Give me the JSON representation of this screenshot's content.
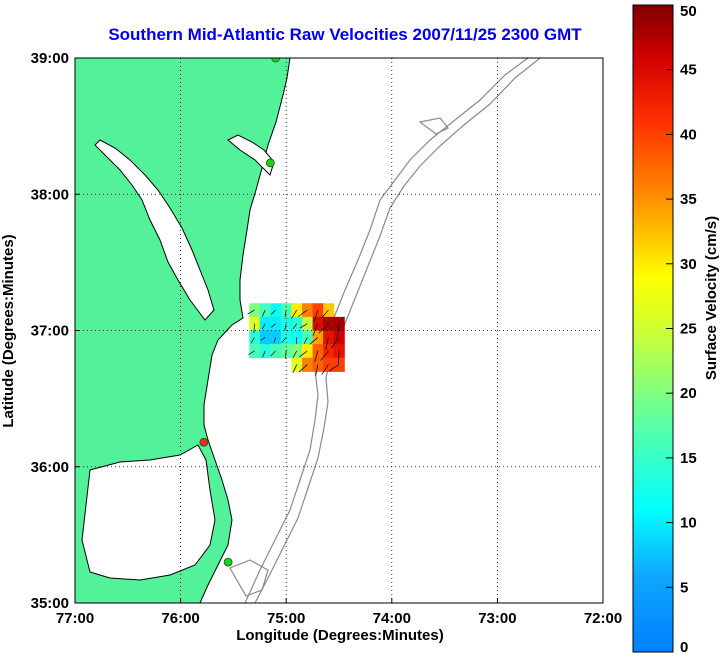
{
  "chart_data": {
    "type": "heatmap",
    "title": "Southern Mid-Atlantic Raw Velocities 2007/11/25 2300 GMT",
    "xlabel": "Longitude (Degrees:Minutes)",
    "ylabel": "Latitude (Degrees:Minutes)",
    "xlim": [
      -77,
      -72
    ],
    "ylim": [
      35,
      39
    ],
    "x_ticks": [
      {
        "value": -77,
        "label": "77:00"
      },
      {
        "value": -76,
        "label": "76:00"
      },
      {
        "value": -75,
        "label": "75:00"
      },
      {
        "value": -74,
        "label": "74:00"
      },
      {
        "value": -73,
        "label": "73:00"
      },
      {
        "value": -72,
        "label": "72:00"
      }
    ],
    "y_ticks": [
      {
        "value": 35,
        "label": "35:00"
      },
      {
        "value": 36,
        "label": "36:00"
      },
      {
        "value": 37,
        "label": "37:00"
      },
      {
        "value": 38,
        "label": "38:00"
      },
      {
        "value": 39,
        "label": "39:00"
      }
    ],
    "grid": "dotted at tick positions",
    "colorbar": {
      "label": "Surface Velocity (cm/s)",
      "range": [
        0,
        50
      ],
      "ticks": [
        0,
        5,
        10,
        15,
        20,
        25,
        30,
        35,
        40,
        45,
        50
      ],
      "colormap": "jet",
      "placement": "right"
    },
    "colors": {
      "land": "#52f19a",
      "water": "#ffffff",
      "coastline": "#000000",
      "bathymetry": "#8a8a8a",
      "title": "#0000ee",
      "station_green": "#22cc22",
      "station_red": "#ff2222"
    },
    "stations": [
      {
        "lon": -75.1,
        "lat": 39.0,
        "status": "green"
      },
      {
        "lon": -75.15,
        "lat": 38.23,
        "status": "green"
      },
      {
        "lon": -75.78,
        "lat": 36.18,
        "status": "red"
      },
      {
        "lon": -75.55,
        "lat": 35.3,
        "status": "green"
      }
    ],
    "velocity_cells": [
      {
        "lon": -75.3,
        "lat": 37.15,
        "speed": 20
      },
      {
        "lon": -75.2,
        "lat": 37.15,
        "speed": 16
      },
      {
        "lon": -75.1,
        "lat": 37.15,
        "speed": 12
      },
      {
        "lon": -75.0,
        "lat": 37.15,
        "speed": 16
      },
      {
        "lon": -74.9,
        "lat": 37.15,
        "speed": 30
      },
      {
        "lon": -74.8,
        "lat": 37.15,
        "speed": 36
      },
      {
        "lon": -74.7,
        "lat": 37.15,
        "speed": 40
      },
      {
        "lon": -74.6,
        "lat": 37.15,
        "speed": 32
      },
      {
        "lon": -75.3,
        "lat": 37.05,
        "speed": 26
      },
      {
        "lon": -75.2,
        "lat": 37.05,
        "speed": 10
      },
      {
        "lon": -75.1,
        "lat": 37.05,
        "speed": 10
      },
      {
        "lon": -75.0,
        "lat": 37.05,
        "speed": 13
      },
      {
        "lon": -74.9,
        "lat": 37.05,
        "speed": 14
      },
      {
        "lon": -74.8,
        "lat": 37.05,
        "speed": 24
      },
      {
        "lon": -74.7,
        "lat": 37.05,
        "speed": 45
      },
      {
        "lon": -74.6,
        "lat": 37.05,
        "speed": 48
      },
      {
        "lon": -74.5,
        "lat": 37.05,
        "speed": 48
      },
      {
        "lon": -75.3,
        "lat": 36.95,
        "speed": 14
      },
      {
        "lon": -75.2,
        "lat": 36.95,
        "speed": 8
      },
      {
        "lon": -75.1,
        "lat": 36.95,
        "speed": 8
      },
      {
        "lon": -75.0,
        "lat": 36.95,
        "speed": 13
      },
      {
        "lon": -74.9,
        "lat": 36.95,
        "speed": 12
      },
      {
        "lon": -74.8,
        "lat": 36.95,
        "speed": 16
      },
      {
        "lon": -74.7,
        "lat": 36.95,
        "speed": 34
      },
      {
        "lon": -74.6,
        "lat": 36.95,
        "speed": 44
      },
      {
        "lon": -74.5,
        "lat": 36.95,
        "speed": 46
      },
      {
        "lon": -75.3,
        "lat": 36.85,
        "speed": 16
      },
      {
        "lon": -75.2,
        "lat": 36.85,
        "speed": 14
      },
      {
        "lon": -75.1,
        "lat": 36.85,
        "speed": 16
      },
      {
        "lon": -75.0,
        "lat": 36.85,
        "speed": 18
      },
      {
        "lon": -74.9,
        "lat": 36.85,
        "speed": 20
      },
      {
        "lon": -74.8,
        "lat": 36.85,
        "speed": 30
      },
      {
        "lon": -74.7,
        "lat": 36.85,
        "speed": 38
      },
      {
        "lon": -74.6,
        "lat": 36.85,
        "speed": 42
      },
      {
        "lon": -74.5,
        "lat": 36.85,
        "speed": 44
      },
      {
        "lon": -74.9,
        "lat": 36.75,
        "speed": 26
      },
      {
        "lon": -74.8,
        "lat": 36.75,
        "speed": 36
      },
      {
        "lon": -74.7,
        "lat": 36.75,
        "speed": 38
      },
      {
        "lon": -74.6,
        "lat": 36.75,
        "speed": 40
      },
      {
        "lon": -74.5,
        "lat": 36.75,
        "speed": 40
      }
    ]
  }
}
